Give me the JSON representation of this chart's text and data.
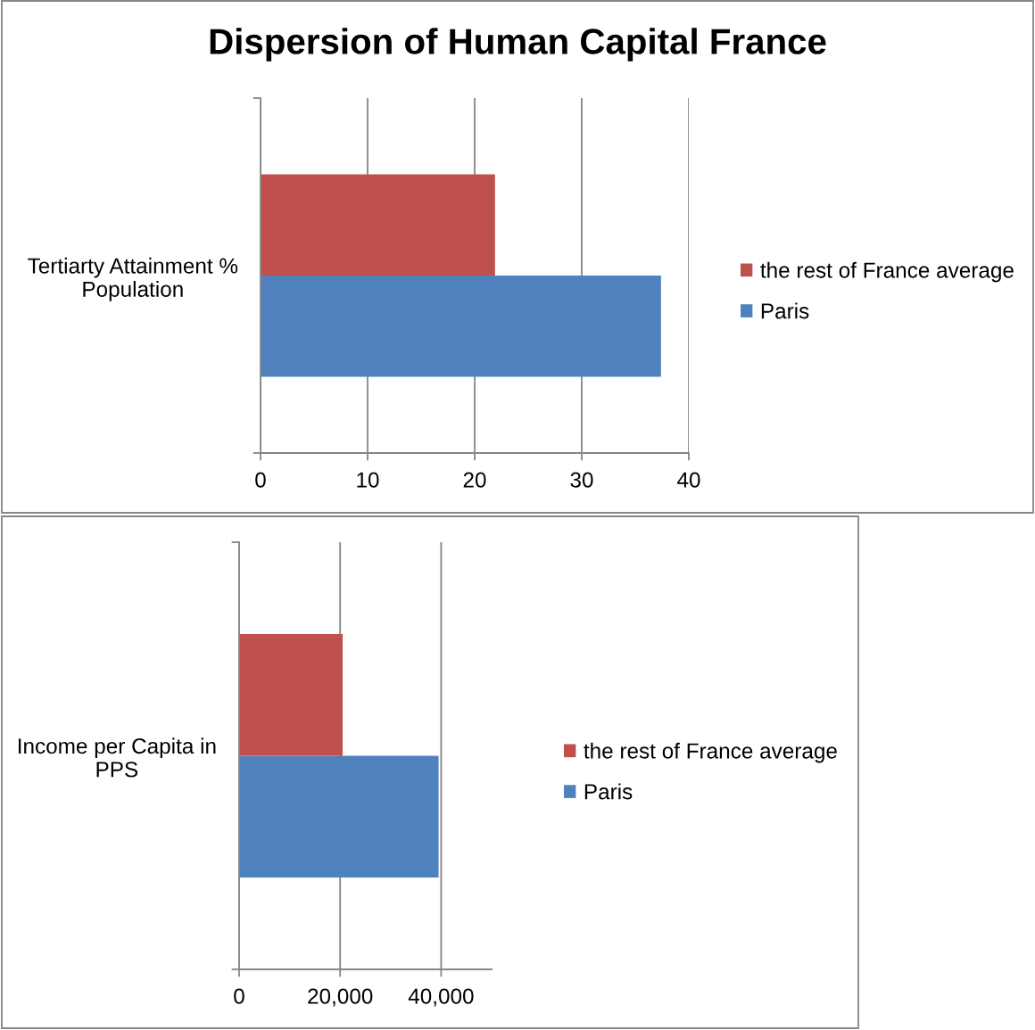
{
  "chart_data": [
    {
      "type": "bar",
      "title": "Dispersion of Human Capital France",
      "orientation": "horizontal",
      "categories": [
        "Tertiarty Attainment %\nPopulation"
      ],
      "series": [
        {
          "name": "the rest of France average",
          "color": "#c0504d",
          "values": [
            21.9
          ]
        },
        {
          "name": "Paris",
          "color": "#4f81bd",
          "values": [
            37.4
          ]
        }
      ],
      "xlim": [
        0,
        40
      ],
      "xticks": [
        0,
        10,
        20,
        30,
        40
      ],
      "grid": "x",
      "legend": "right"
    },
    {
      "type": "bar",
      "orientation": "horizontal",
      "categories": [
        "Income per Capita in\nPPS"
      ],
      "series": [
        {
          "name": "the rest of France average",
          "color": "#c0504d",
          "values": [
            20500
          ]
        },
        {
          "name": "Paris",
          "color": "#4f81bd",
          "values": [
            39500
          ]
        }
      ],
      "xlim": [
        0,
        50000
      ],
      "xticks": [
        0,
        {
          "value": 20000,
          "label": "20,000"
        },
        {
          "value": 40000,
          "label": "40,000"
        }
      ],
      "grid": "x",
      "legend": "right"
    }
  ]
}
